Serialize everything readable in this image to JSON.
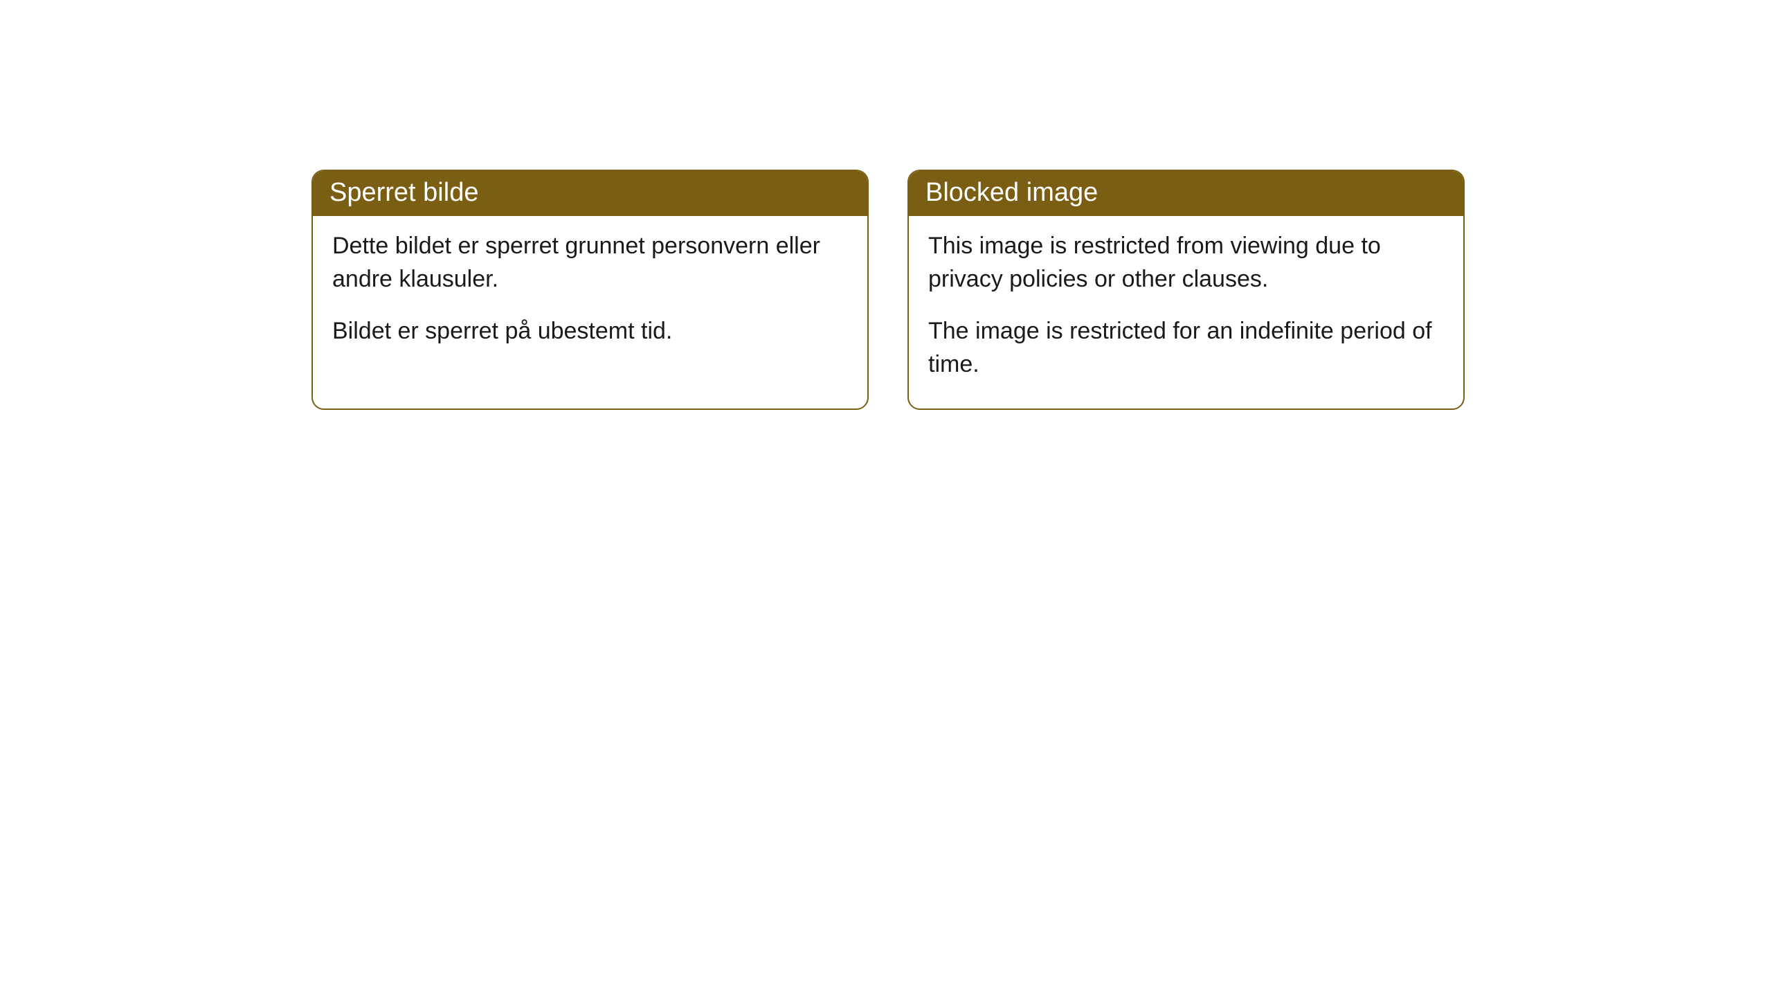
{
  "cards": [
    {
      "title": "Sperret bilde",
      "paragraph1": "Dette bildet er sperret grunnet personvern eller andre klausuler.",
      "paragraph2": "Bildet er sperret på ubestemt tid."
    },
    {
      "title": "Blocked image",
      "paragraph1": "This image is restricted from viewing due to privacy policies or other clauses.",
      "paragraph2": "The image is restricted for an indefinite period of time."
    }
  ],
  "style": {
    "header_bg_color": "#7a5e13",
    "header_text_color": "#ffffff",
    "border_color": "#7a5e13",
    "body_bg_color": "#ffffff",
    "body_text_color": "#1a1a1a",
    "border_radius": 18,
    "header_fontsize": 38,
    "body_fontsize": 34
  }
}
